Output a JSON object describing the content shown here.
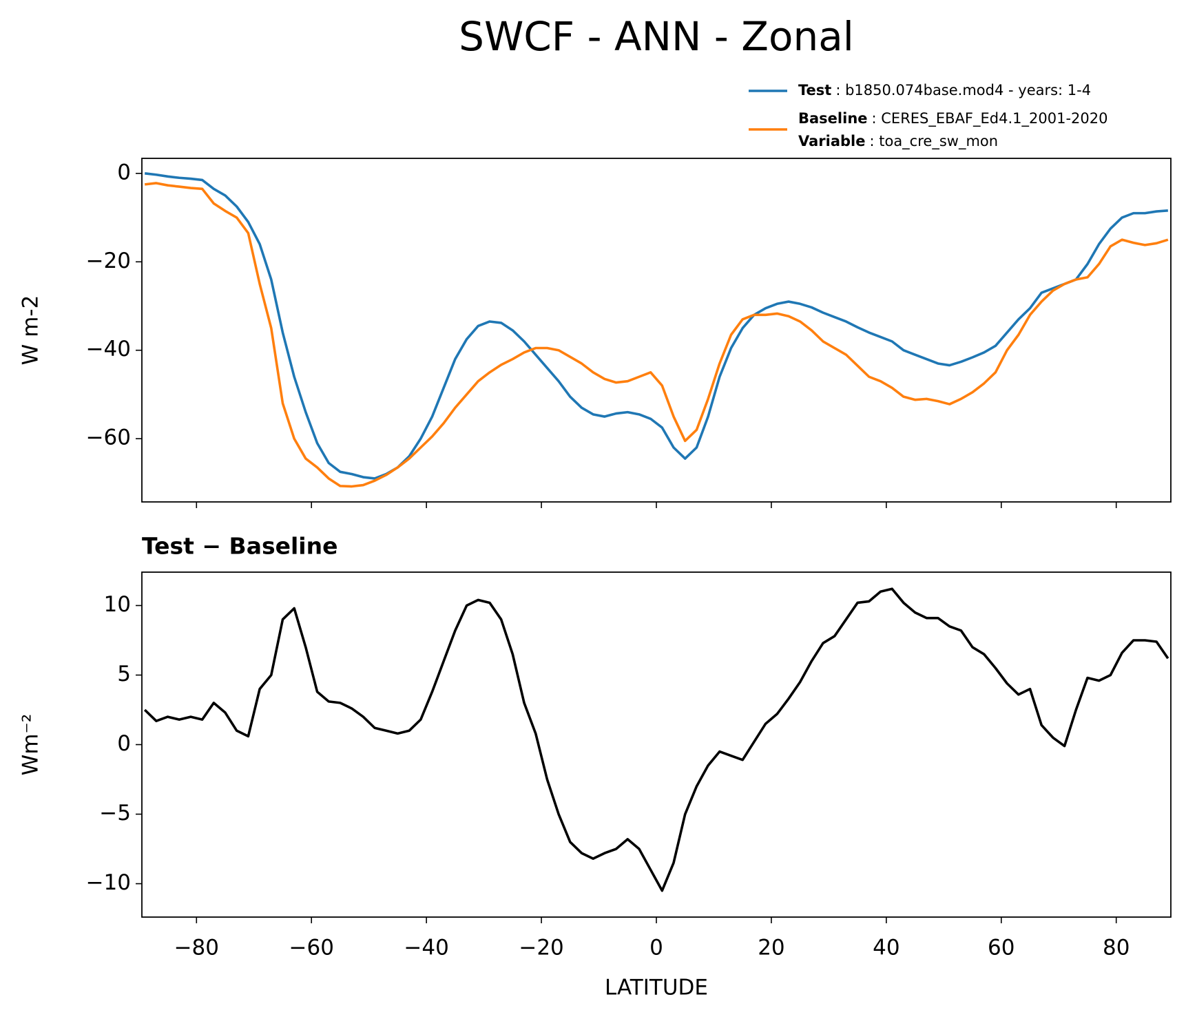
{
  "title": "SWCF - ANN - Zonal",
  "chart_data": [
    {
      "type": "line",
      "ylabel": "W m-2",
      "x": [
        -89,
        -87,
        -85,
        -83,
        -81,
        -79,
        -77,
        -75,
        -73,
        -71,
        -69,
        -67,
        -65,
        -63,
        -61,
        -59,
        -57,
        -55,
        -53,
        -51,
        -49,
        -47,
        -45,
        -43,
        -41,
        -39,
        -37,
        -35,
        -33,
        -31,
        -29,
        -27,
        -25,
        -23,
        -21,
        -19,
        -17,
        -15,
        -13,
        -11,
        -9,
        -7,
        -5,
        -3,
        -1,
        1,
        3,
        5,
        7,
        9,
        11,
        13,
        15,
        17,
        19,
        21,
        23,
        25,
        27,
        29,
        31,
        33,
        35,
        37,
        39,
        41,
        43,
        45,
        47,
        49,
        51,
        53,
        55,
        57,
        59,
        61,
        63,
        65,
        67,
        69,
        71,
        73,
        75,
        77,
        79,
        81,
        83,
        85,
        87,
        89
      ],
      "series": [
        {
          "name": "Test",
          "description": ": b1850.074base.mod4 - years: 1-4",
          "color": "#1f77b4",
          "values": [
            0,
            -0.3,
            -0.7,
            -1.0,
            -1.2,
            -1.5,
            -3.5,
            -5,
            -7.5,
            -11,
            -16,
            -24,
            -36,
            -46,
            -54,
            -61,
            -65.5,
            -67.5,
            -68,
            -68.7,
            -69,
            -68,
            -66.5,
            -64,
            -60,
            -55,
            -48.5,
            -42,
            -37.5,
            -34.5,
            -33.5,
            -33.8,
            -35.5,
            -38,
            -41,
            -44,
            -47,
            -50.5,
            -53,
            -54.5,
            -55,
            -54.3,
            -54,
            -54.5,
            -55.5,
            -57.5,
            -62,
            -64.5,
            -62,
            -55,
            -46,
            -39.5,
            -35,
            -32,
            -30.5,
            -29.5,
            -29,
            -29.5,
            -30.3,
            -31.5,
            -32.5,
            -33.5,
            -34.8,
            -36,
            -37,
            -38,
            -40,
            -41,
            -42,
            -43,
            -43.4,
            -42.6,
            -41.6,
            -40.5,
            -39,
            -36,
            -33,
            -30.5,
            -27,
            -26,
            -25,
            -24,
            -20.5,
            -16,
            -12.5,
            -10,
            -9,
            -9,
            -8.6,
            -8.4
          ]
        },
        {
          "name": "Baseline",
          "description": ": CERES_EBAF_Ed4.1_2001-2020",
          "variable_label": "Variable",
          "variable": ": toa_cre_sw_mon",
          "color": "#ff7f0e",
          "values": [
            -2.5,
            -2.2,
            -2.7,
            -3.0,
            -3.3,
            -3.5,
            -6.8,
            -8.5,
            -10,
            -13.5,
            -25,
            -35,
            -52,
            -60,
            -64.5,
            -66.5,
            -69,
            -70.7,
            -70.8,
            -70.5,
            -69.5,
            -68.2,
            -66.5,
            -64.5,
            -62,
            -59.5,
            -56.5,
            -53,
            -50,
            -47,
            -45,
            -43.3,
            -42,
            -40.5,
            -39.5,
            -39.5,
            -40,
            -41.5,
            -43,
            -45,
            -46.5,
            -47.3,
            -47,
            -46,
            -45,
            -48,
            -55,
            -60.5,
            -58,
            -51,
            -43,
            -36.5,
            -33,
            -32,
            -32,
            -31.7,
            -32.3,
            -33.5,
            -35.5,
            -38,
            -39.5,
            -41,
            -43.5,
            -46,
            -47,
            -48.5,
            -50.5,
            -51.2,
            -51,
            -51.5,
            -52.2,
            -51,
            -49.5,
            -47.5,
            -45,
            -40,
            -36.5,
            -32,
            -29,
            -26.5,
            -25,
            -24,
            -23.5,
            -20.5,
            -16.5,
            -15,
            -15.7,
            -16.2,
            -15.8,
            -15
          ]
        }
      ],
      "xlim": [
        -89.5,
        89.5
      ],
      "xticks": [
        {
          "value": -80,
          "label": "−80"
        },
        {
          "value": -60,
          "label": "−60"
        },
        {
          "value": -40,
          "label": "−40"
        },
        {
          "value": -20,
          "label": "−20"
        },
        0,
        20,
        40,
        60,
        80
      ],
      "ylim": [
        -74.3,
        3.4
      ],
      "yticks": [
        {
          "value": -60,
          "label": "−60"
        },
        {
          "value": -40,
          "label": "−40"
        },
        {
          "value": -20,
          "label": "−20"
        },
        0
      ],
      "legend": "upper right"
    },
    {
      "type": "line",
      "title": "Test − Baseline",
      "ylabel": "Wm⁻²",
      "xlabel": "LATITUDE",
      "x": [
        -89,
        -87,
        -85,
        -83,
        -81,
        -79,
        -77,
        -75,
        -73,
        -71,
        -69,
        -67,
        -65,
        -63,
        -61,
        -59,
        -57,
        -55,
        -53,
        -51,
        -49,
        -47,
        -45,
        -43,
        -41,
        -39,
        -37,
        -35,
        -33,
        -31,
        -29,
        -27,
        -25,
        -23,
        -21,
        -19,
        -17,
        -15,
        -13,
        -11,
        -9,
        -7,
        -5,
        -3,
        -1,
        1,
        3,
        5,
        7,
        9,
        11,
        13,
        15,
        17,
        19,
        21,
        23,
        25,
        27,
        29,
        31,
        33,
        35,
        37,
        39,
        41,
        43,
        45,
        47,
        49,
        51,
        53,
        55,
        57,
        59,
        61,
        63,
        65,
        67,
        69,
        71,
        73,
        75,
        77,
        79,
        81,
        83,
        85,
        87,
        89
      ],
      "series": [
        {
          "color": "#000000",
          "values": [
            2.5,
            1.7,
            2.0,
            1.8,
            2.0,
            1.8,
            3.0,
            2.3,
            1.0,
            0.6,
            4.0,
            5.0,
            9.0,
            9.8,
            7,
            3.8,
            3.1,
            3.0,
            2.6,
            2.0,
            1.2,
            1.0,
            0.8,
            1.0,
            1.8,
            3.8,
            6.0,
            8.2,
            10.0,
            10.4,
            10.2,
            9.0,
            6.5,
            3.0,
            0.8,
            -2.5,
            -5,
            -7,
            -7.8,
            -8.2,
            -7.8,
            -7.5,
            -6.8,
            -7.5,
            -9,
            -10.5,
            -8.5,
            -5,
            -3,
            -1.5,
            -0.5,
            -0.8,
            -1.1,
            0.2,
            1.5,
            2.2,
            3.3,
            4.5,
            6.0,
            7.3,
            7.8,
            9.0,
            10.2,
            10.3,
            11.0,
            11.2,
            10.2,
            9.5,
            9.1,
            9.1,
            8.5,
            8.2,
            7.0,
            6.5,
            5.5,
            4.4,
            3.6,
            4.0,
            1.4,
            0.5,
            -0.1,
            2.5,
            4.8,
            4.6,
            5.0,
            6.6,
            7.5,
            7.5,
            7.4,
            6.2
          ]
        }
      ],
      "xlim": [
        -89.5,
        89.5
      ],
      "xticks": [
        {
          "value": -80,
          "label": "−80"
        },
        {
          "value": -60,
          "label": "−60"
        },
        {
          "value": -40,
          "label": "−40"
        },
        {
          "value": -20,
          "label": "−20"
        },
        0,
        20,
        40,
        60,
        80
      ],
      "ylim": [
        -12.4,
        12.4
      ],
      "yticks": [
        {
          "value": -10,
          "label": "−10"
        },
        {
          "value": -5,
          "label": "−5"
        },
        0,
        5,
        10
      ]
    }
  ]
}
